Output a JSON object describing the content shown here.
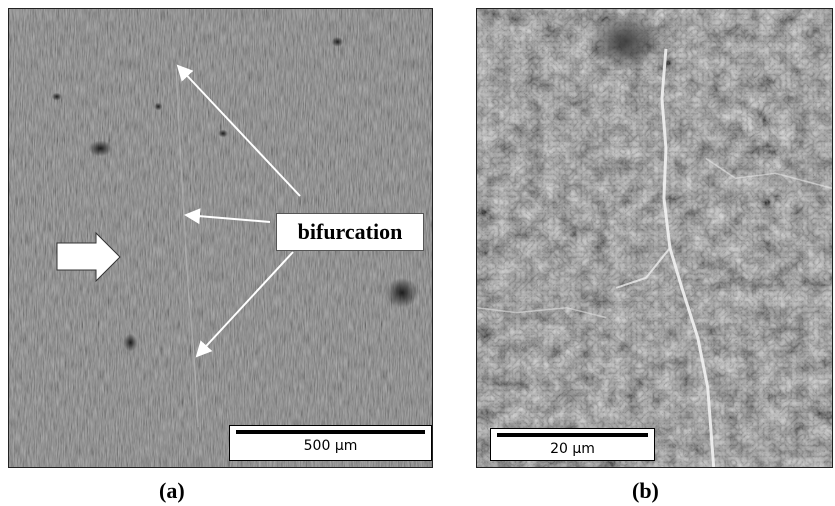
{
  "panels": [
    {
      "label": "(a)",
      "scale_bar": "500 µm",
      "callout": "bifurcation"
    },
    {
      "label": "(b)",
      "scale_bar": "20 µm"
    }
  ],
  "colors": {
    "background": "#ffffff",
    "sem_gray_a": "#6e6e6e",
    "sem_gray_b": "#8a8a8a",
    "annotation": "#ffffff"
  },
  "icons": {
    "direction_arrow": "block-arrow-right-icon"
  }
}
